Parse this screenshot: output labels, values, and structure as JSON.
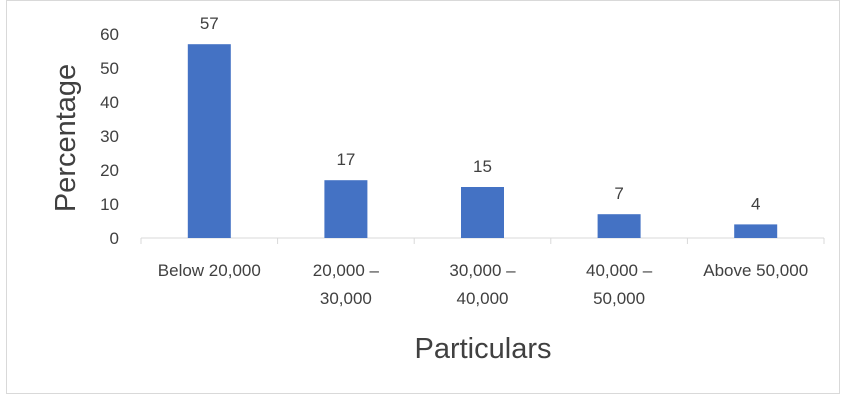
{
  "chart_data": {
    "type": "bar",
    "categories": [
      [
        "Below 20,000"
      ],
      [
        "20,000 –",
        "30,000"
      ],
      [
        "30,000 –",
        "40,000"
      ],
      [
        "40,000 –",
        "50,000"
      ],
      [
        "Above 50,000"
      ]
    ],
    "values": [
      57,
      17,
      15,
      7,
      4
    ],
    "title": "",
    "xlabel": "Particulars",
    "ylabel": "Percentage",
    "ylim": [
      0,
      60
    ],
    "yticks": [
      0,
      10,
      20,
      30,
      40,
      50,
      60
    ],
    "grid": false,
    "legend": "none",
    "bar_color": "#4472c4",
    "axis_color": "#d9d9d9"
  }
}
